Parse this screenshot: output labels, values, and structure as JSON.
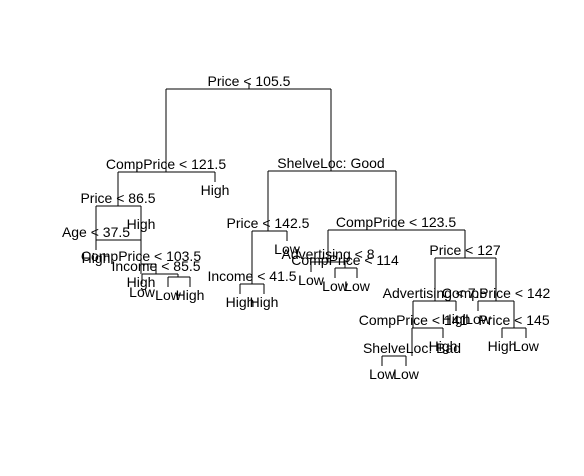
{
  "tree": {
    "root": {
      "split": "Price < 105.5",
      "left": {
        "split": "CompPrice < 121.5",
        "left": {
          "split": "Price < 86.5",
          "left": {
            "split": "Age < 37.5",
            "left": {
              "leaf": "High"
            },
            "right": {
              "split": "CompPrice < 103.5",
              "left": {
                "leaf": "High"
              },
              "right": {
                "split": "Income < 85.5",
                "left": {
                  "leaf": "Low"
                },
                "right": {
                  "split": "",
                  "left": {
                    "leaf": "Low"
                  },
                  "right": {
                    "leaf": "High"
                  }
                }
              }
            }
          },
          "right": {
            "leaf": "High"
          }
        },
        "right": {
          "leaf": "High"
        }
      },
      "right": {
        "split": "ShelveLoc: Good",
        "left": {
          "split": "Price < 142.5",
          "left": {
            "split": "Income < 41.5",
            "left": {
              "leaf": "High"
            },
            "right": {
              "leaf": "High"
            }
          },
          "right": {
            "leaf": "Low"
          }
        },
        "right": {
          "split": "CompPrice < 123.5",
          "left": {
            "split": "Advertising < 8",
            "left": {
              "leaf": "Low"
            },
            "right": {
              "split": "CompPrice < 114",
              "left": {
                "leaf": "Low"
              },
              "right": {
                "leaf": "Low"
              }
            }
          },
          "right": {
            "split": "Price < 127",
            "left": {
              "split": "Advertising < 7.5",
              "left": {
                "split": "CompPrice < 141",
                "left": {
                  "split": "ShelveLoc: Bad",
                  "left": {
                    "leaf": "Low"
                  },
                  "right": {
                    "leaf": "Low"
                  }
                },
                "right": {
                  "leaf": "High"
                }
              },
              "right": {
                "leaf": "High"
              }
            },
            "right": {
              "split": "CompPrice < 142",
              "left": {
                "leaf": "Low"
              },
              "right": {
                "split": "Price < 145",
                "left": {
                  "leaf": "High"
                },
                "right": {
                  "leaf": "Low"
                }
              }
            }
          }
        }
      }
    }
  }
}
